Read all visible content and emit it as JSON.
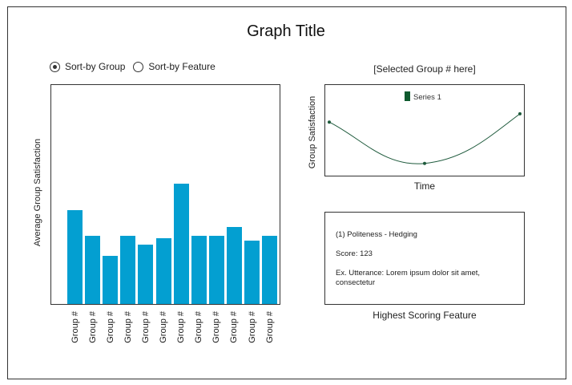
{
  "page": {
    "title": "Graph Title"
  },
  "sort_options": [
    {
      "label": "Sort-by Group",
      "checked": true
    },
    {
      "label": "Sort-by Feature",
      "checked": false
    }
  ],
  "bar_panel": {
    "ylabel": "Average Group Satisfaction"
  },
  "line_panel": {
    "title": "[Selected Group # here]",
    "ylabel": "Group Satisfaction",
    "xlabel": "Time",
    "legend_label": "Series 1"
  },
  "feature": {
    "name": "(1) Politeness - Hedging",
    "score": "Score: 123",
    "utterance": "Ex. Utterance: Lorem ipsum dolor sit amet, consectetur",
    "caption": "Highest Scoring Feature"
  },
  "colors": {
    "bar": "#039fd1",
    "line": "#1e5a3c",
    "legend": "#0f5a2e"
  },
  "chart_data": [
    {
      "type": "bar",
      "ylabel": "Average Group Satisfaction",
      "ylim": [
        0,
        100
      ],
      "categories": [
        "Group #",
        "Group #",
        "Group #",
        "Group #",
        "Group #",
        "Group #",
        "Group #",
        "Group #",
        "Group #",
        "Group #",
        "Group #",
        "Group #"
      ],
      "values": [
        43,
        31,
        22,
        31,
        27,
        30,
        55,
        31,
        31,
        35,
        29,
        31
      ]
    },
    {
      "type": "line",
      "ylabel": "Group Satisfaction",
      "xlabel": "Time",
      "series": [
        {
          "name": "Series 1",
          "x": [
            0,
            1,
            2
          ],
          "values": [
            60,
            10,
            70
          ]
        }
      ],
      "ylim": [
        0,
        100
      ],
      "legend": "top"
    }
  ]
}
